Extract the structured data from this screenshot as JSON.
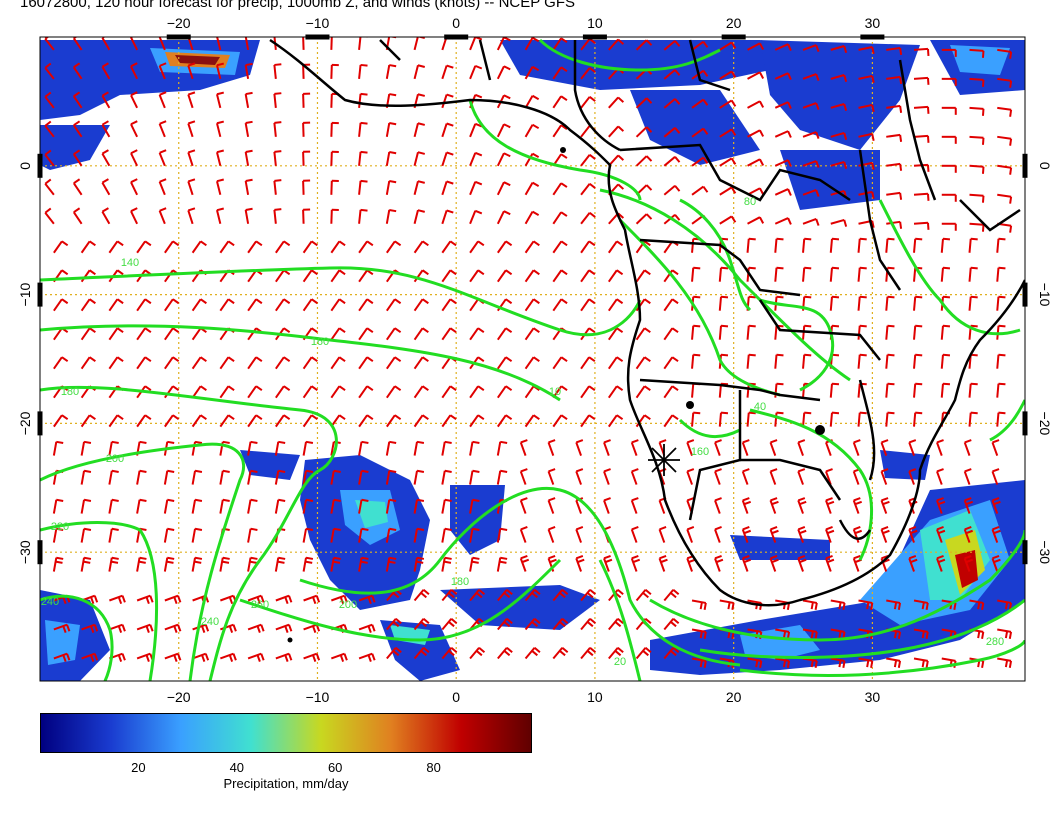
{
  "title": "16072800, 120 hour forecast for precip, 1000mb Z, and winds (knots) -- NCEP GFS",
  "map": {
    "lon_range": [
      -30,
      41
    ],
    "lat_range": [
      -40,
      10
    ],
    "lon_ticks": [
      "−20",
      "−10",
      "0",
      "10",
      "20",
      "30"
    ],
    "lon_tick_values": [
      -20,
      -10,
      0,
      10,
      20,
      30
    ],
    "lat_ticks": [
      "0",
      "−10",
      "−20",
      "−30"
    ],
    "lat_tick_values": [
      0,
      -10,
      -20,
      -30
    ],
    "grid": "dotted yellow every 10 degrees",
    "wind_barb_color": "#e00000",
    "contour_color": "#22dd22",
    "coastline_color": "#000000",
    "precip_colors": [
      "#000080",
      "#1a3cd0",
      "#3aa0ff",
      "#40e0d0",
      "#c8d820",
      "#e08020",
      "#c00000",
      "#600000"
    ]
  },
  "contour_labels": [
    "140",
    "160",
    "180",
    "200",
    "220",
    "240",
    "260",
    "280",
    "80",
    "160",
    "40",
    "10",
    "20",
    "200",
    "240",
    "180"
  ],
  "colorbar": {
    "ticks": [
      "20",
      "40",
      "60",
      "80"
    ],
    "tick_values": [
      20,
      40,
      60,
      80
    ],
    "range": [
      0,
      100
    ],
    "label": "Precipitation, mm/day"
  },
  "marker": {
    "symbol": "✳",
    "lon": 15,
    "lat": -23
  }
}
